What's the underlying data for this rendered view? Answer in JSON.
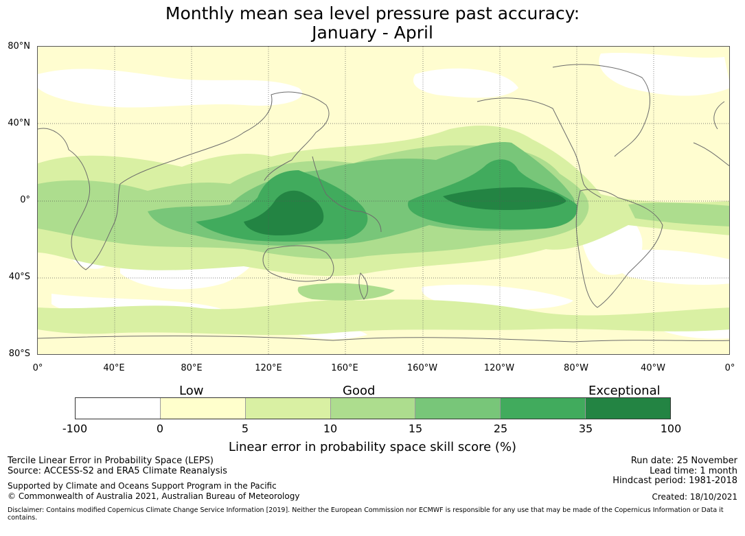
{
  "title": {
    "line1": "Monthly mean sea level pressure past accuracy:",
    "line2": "January - April"
  },
  "map": {
    "lat_labels": [
      "80°N",
      "40°N",
      "0°",
      "40°S",
      "80°S"
    ],
    "lon_labels": [
      "0°",
      "40°E",
      "80°E",
      "120°E",
      "160°E",
      "160°W",
      "120°W",
      "80°W",
      "40°W",
      "0°"
    ]
  },
  "legend": {
    "categories": {
      "low": "Low",
      "good": "Good",
      "exceptional": "Exceptional"
    },
    "ticks": [
      "-100",
      "0",
      "5",
      "10",
      "15",
      "25",
      "35",
      "100"
    ],
    "colors": [
      "#ffffff",
      "#ffffcc",
      "#d9f0a3",
      "#addd8e",
      "#78c679",
      "#41ab5d",
      "#238443"
    ],
    "label": "Linear error in probability space skill score (%)"
  },
  "footer": {
    "left_line1": "Tercile Linear Error in Probability Space (LEPS)",
    "left_line2": "Source: ACCESS-S2 and ERA5 Climate Reanalysis",
    "left_line3": "Supported by Climate and Oceans Support Program in the Pacific",
    "left_line4": "© Commonwealth of Australia 2021, Australian Bureau of Meteorology",
    "right_line1": "Run date: 25 November",
    "right_line2": "Lead time: 1 month",
    "right_line3": "Hindcast period: 1981-2018",
    "right_line4": "Created: 18/10/2021",
    "disclaimer": "Disclaimer: Contains modified Copernicus Climate Change Service Information [2019]. Neither the European Commission nor ECMWF is responsible for any use that may be made of the Copernicus Information or Data it contains."
  }
}
